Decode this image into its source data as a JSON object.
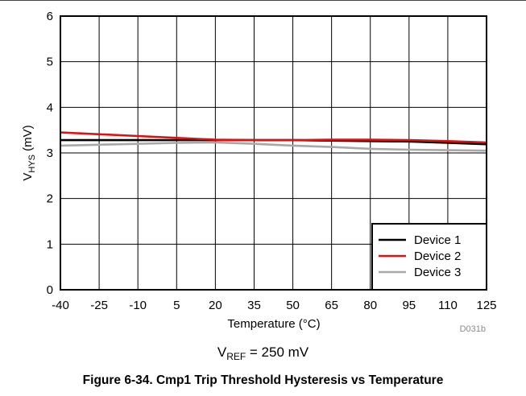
{
  "figure": {
    "caption": "Figure 6-34. Cmp1 Trip Threshold Hysteresis vs Temperature",
    "condition": {
      "main": "V",
      "sub": "REF",
      "rest": " = 250 mV"
    },
    "code_id": "D031b"
  },
  "chart_data": {
    "type": "line",
    "title": "",
    "xlabel": "Temperature (°C)",
    "ylabel": {
      "main": "V",
      "sub": "HYS",
      "rest": " (mV)"
    },
    "xlim": [
      -40,
      125
    ],
    "ylim": [
      0,
      6
    ],
    "xticks": [
      -40,
      -25,
      -10,
      5,
      20,
      35,
      50,
      65,
      80,
      95,
      110,
      125
    ],
    "yticks": [
      0,
      1,
      2,
      3,
      4,
      5,
      6
    ],
    "grid": true,
    "legend_position": "bottom-right",
    "series": [
      {
        "name": "Device 1",
        "color": "#000000",
        "x": [
          -40,
          -25,
          -10,
          5,
          20,
          35,
          50,
          65,
          80,
          95,
          110,
          125
        ],
        "y": [
          3.28,
          3.28,
          3.28,
          3.28,
          3.28,
          3.28,
          3.28,
          3.27,
          3.26,
          3.25,
          3.22,
          3.19
        ]
      },
      {
        "name": "Device 2",
        "color": "#e01010",
        "x": [
          -40,
          -25,
          -10,
          5,
          20,
          35,
          50,
          65,
          80,
          95,
          110,
          125
        ],
        "y": [
          3.45,
          3.41,
          3.37,
          3.33,
          3.29,
          3.28,
          3.28,
          3.29,
          3.29,
          3.28,
          3.26,
          3.23
        ]
      },
      {
        "name": "Device 3",
        "color": "#a8a8a8",
        "x": [
          -40,
          -25,
          -10,
          5,
          20,
          35,
          50,
          65,
          80,
          95,
          110,
          125
        ],
        "y": [
          3.16,
          3.18,
          3.2,
          3.22,
          3.23,
          3.2,
          3.16,
          3.13,
          3.09,
          3.07,
          3.06,
          3.05
        ]
      }
    ]
  }
}
